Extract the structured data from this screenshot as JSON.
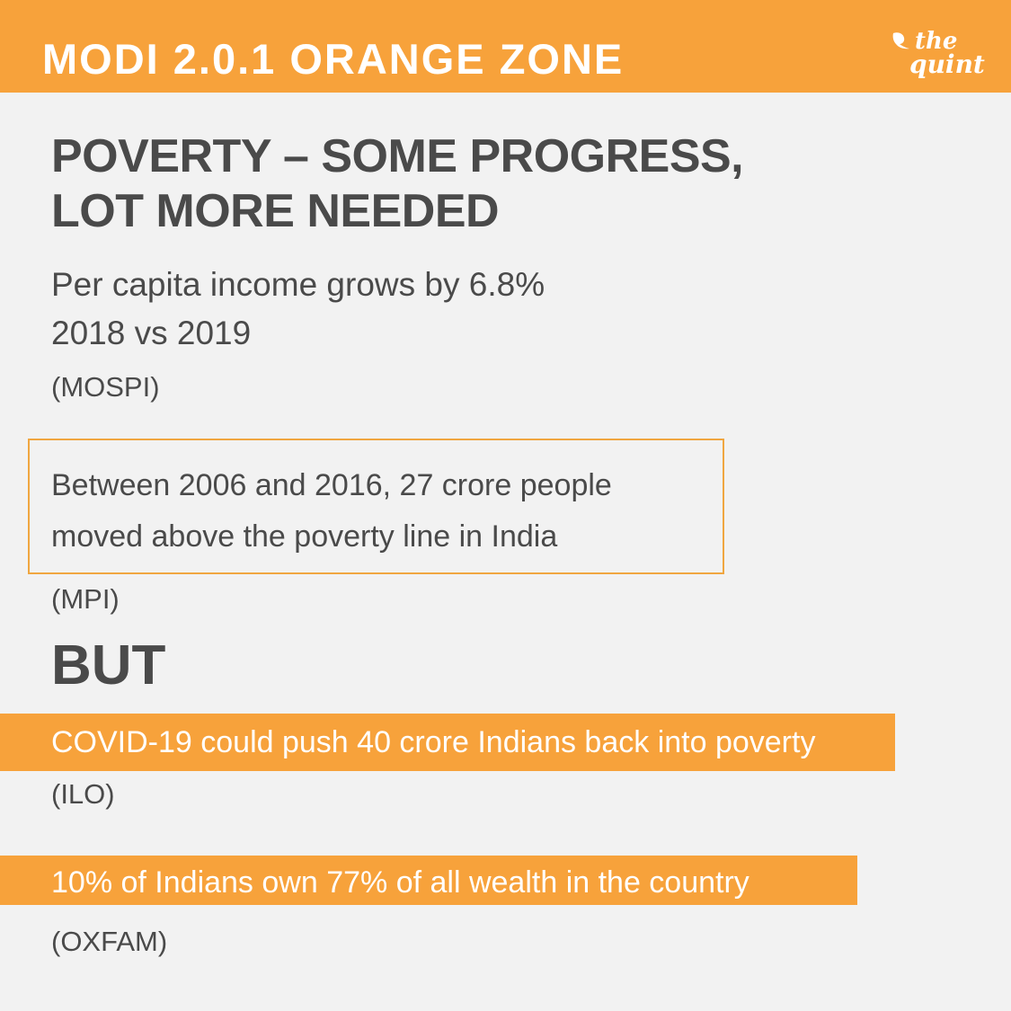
{
  "header": {
    "title": "MODI 2.0.1 ORANGE ZONE",
    "background_color": "#f7a23b"
  },
  "logo": {
    "line1": "the",
    "line2": "quint",
    "icon": "quint-mark-icon"
  },
  "headline": {
    "line1": "POVERTY – SOME PROGRESS,",
    "line2": "LOT MORE NEEDED"
  },
  "income_stat": {
    "line1": "Per capita income grows by 6.8%",
    "line2": "2018 vs 2019",
    "source": "(MOSPI)"
  },
  "poverty_line_stat": {
    "line1": "Between 2006 and 2016, 27 crore people",
    "line2": "moved above the poverty line in India",
    "source": "(MPI)",
    "border_color": "#f0a640"
  },
  "contrast_word": "BUT",
  "covid_stat": {
    "text": "COVID-19 could push 40 crore Indians back into poverty",
    "source": "(ILO)"
  },
  "wealth_stat": {
    "text": "10% of Indians own 77% of all wealth in the country",
    "source": "(OXFAM)"
  },
  "colors": {
    "background": "#f2f2f2",
    "accent": "#f7a23b",
    "text": "#4a4a4a",
    "highlight_text": "#ffffff"
  }
}
